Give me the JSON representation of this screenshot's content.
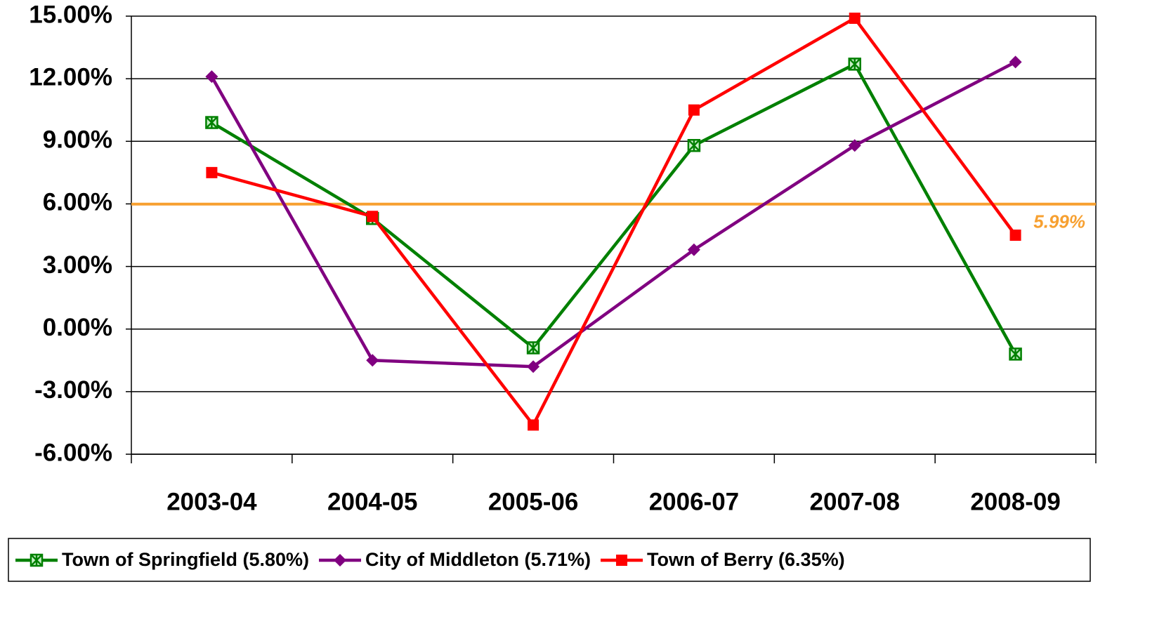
{
  "chart_data": {
    "type": "line",
    "categories": [
      "2003-04",
      "2004-05",
      "2005-06",
      "2006-07",
      "2007-08",
      "2008-09"
    ],
    "series": [
      {
        "name": "Town of Springfield (5.80%)",
        "color": "#008000",
        "marker": "x-square",
        "values": [
          9.9,
          5.3,
          -0.9,
          8.8,
          12.7,
          -1.2
        ]
      },
      {
        "name": "City of Middleton (5.71%)",
        "color": "#800080",
        "marker": "diamond",
        "values": [
          12.1,
          -1.5,
          -1.8,
          3.8,
          8.8,
          12.8
        ]
      },
      {
        "name": "Town of Berry (6.35%)",
        "color": "#ff0000",
        "marker": "square",
        "values": [
          7.5,
          5.4,
          -4.6,
          10.5,
          14.9,
          4.5
        ]
      }
    ],
    "reference_line": {
      "value": 5.99,
      "label": "5.99%",
      "color": "#f7a030"
    },
    "ylim": [
      -6,
      15
    ],
    "yticks": [
      {
        "value": -6,
        "label": "-6.00%"
      },
      {
        "value": -3,
        "label": "-3.00%"
      },
      {
        "value": 0,
        "label": "0.00%"
      },
      {
        "value": 3,
        "label": "3.00%"
      },
      {
        "value": 6,
        "label": "6.00%"
      },
      {
        "value": 9,
        "label": "9.00%"
      },
      {
        "value": 12,
        "label": "12.00%"
      },
      {
        "value": 15,
        "label": "15.00%"
      }
    ],
    "grid": true,
    "legend": "bottom"
  }
}
